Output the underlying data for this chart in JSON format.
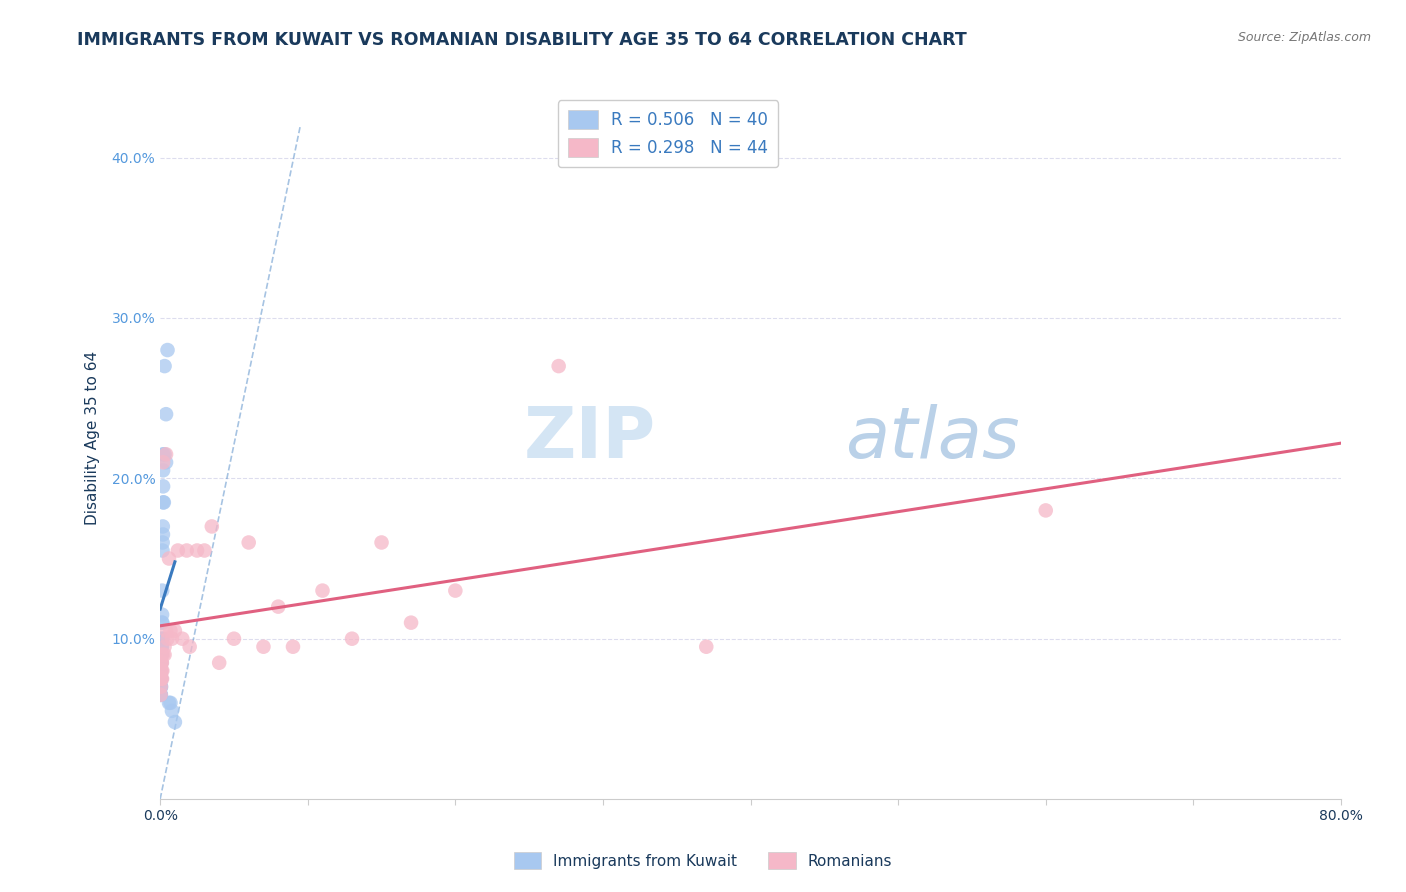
{
  "title": "IMMIGRANTS FROM KUWAIT VS ROMANIAN DISABILITY AGE 35 TO 64 CORRELATION CHART",
  "source": "Source: ZipAtlas.com",
  "ylabel": "Disability Age 35 to 64",
  "xlim": [
    0.0,
    0.8
  ],
  "ylim": [
    0.0,
    0.45
  ],
  "x_ticks": [
    0.0,
    0.1,
    0.2,
    0.3,
    0.4,
    0.5,
    0.6,
    0.7,
    0.8
  ],
  "y_ticks": [
    0.0,
    0.1,
    0.2,
    0.3,
    0.4
  ],
  "color_kuwait": "#a8c8f0",
  "color_romanian": "#f5b8c8",
  "color_line_kuwait": "#3a7abf",
  "color_line_romanian": "#e06080",
  "color_title": "#1a3a5c",
  "color_source": "#777777",
  "color_yaxis": "#5599dd",
  "watermark_zip": "ZIP",
  "watermark_atlas": "atlas",
  "background_color": "#ffffff",
  "grid_color": "#ddddee",
  "title_fontsize": 12.5,
  "tick_fontsize": 10,
  "kuwait_x": [
    0.0003,
    0.0003,
    0.0004,
    0.0004,
    0.0005,
    0.0005,
    0.0006,
    0.0006,
    0.0007,
    0.0007,
    0.0008,
    0.0008,
    0.0009,
    0.001,
    0.001,
    0.001,
    0.0012,
    0.0012,
    0.0013,
    0.0014,
    0.0015,
    0.0015,
    0.0016,
    0.0017,
    0.0018,
    0.0019,
    0.002,
    0.002,
    0.002,
    0.002,
    0.0025,
    0.003,
    0.003,
    0.004,
    0.004,
    0.005,
    0.006,
    0.007,
    0.008,
    0.01
  ],
  "kuwait_y": [
    0.065,
    0.07,
    0.065,
    0.075,
    0.065,
    0.07,
    0.07,
    0.075,
    0.08,
    0.09,
    0.075,
    0.09,
    0.085,
    0.09,
    0.095,
    0.1,
    0.095,
    0.11,
    0.115,
    0.13,
    0.1,
    0.11,
    0.155,
    0.16,
    0.17,
    0.165,
    0.185,
    0.195,
    0.205,
    0.215,
    0.185,
    0.215,
    0.27,
    0.21,
    0.24,
    0.28,
    0.06,
    0.06,
    0.055,
    0.048
  ],
  "romanian_x": [
    0.0003,
    0.0004,
    0.0005,
    0.0006,
    0.0006,
    0.0007,
    0.0008,
    0.001,
    0.001,
    0.0012,
    0.0013,
    0.0015,
    0.002,
    0.002,
    0.003,
    0.003,
    0.004,
    0.004,
    0.005,
    0.006,
    0.007,
    0.008,
    0.01,
    0.012,
    0.015,
    0.018,
    0.02,
    0.025,
    0.03,
    0.035,
    0.04,
    0.05,
    0.06,
    0.07,
    0.08,
    0.09,
    0.11,
    0.13,
    0.15,
    0.17,
    0.2,
    0.27,
    0.37,
    0.6
  ],
  "romanian_y": [
    0.065,
    0.07,
    0.08,
    0.075,
    0.085,
    0.075,
    0.085,
    0.09,
    0.08,
    0.085,
    0.075,
    0.08,
    0.21,
    0.09,
    0.095,
    0.09,
    0.215,
    0.105,
    0.1,
    0.15,
    0.105,
    0.1,
    0.105,
    0.155,
    0.1,
    0.155,
    0.095,
    0.155,
    0.155,
    0.17,
    0.085,
    0.1,
    0.16,
    0.095,
    0.12,
    0.095,
    0.13,
    0.1,
    0.16,
    0.11,
    0.13,
    0.27,
    0.095,
    0.18
  ]
}
